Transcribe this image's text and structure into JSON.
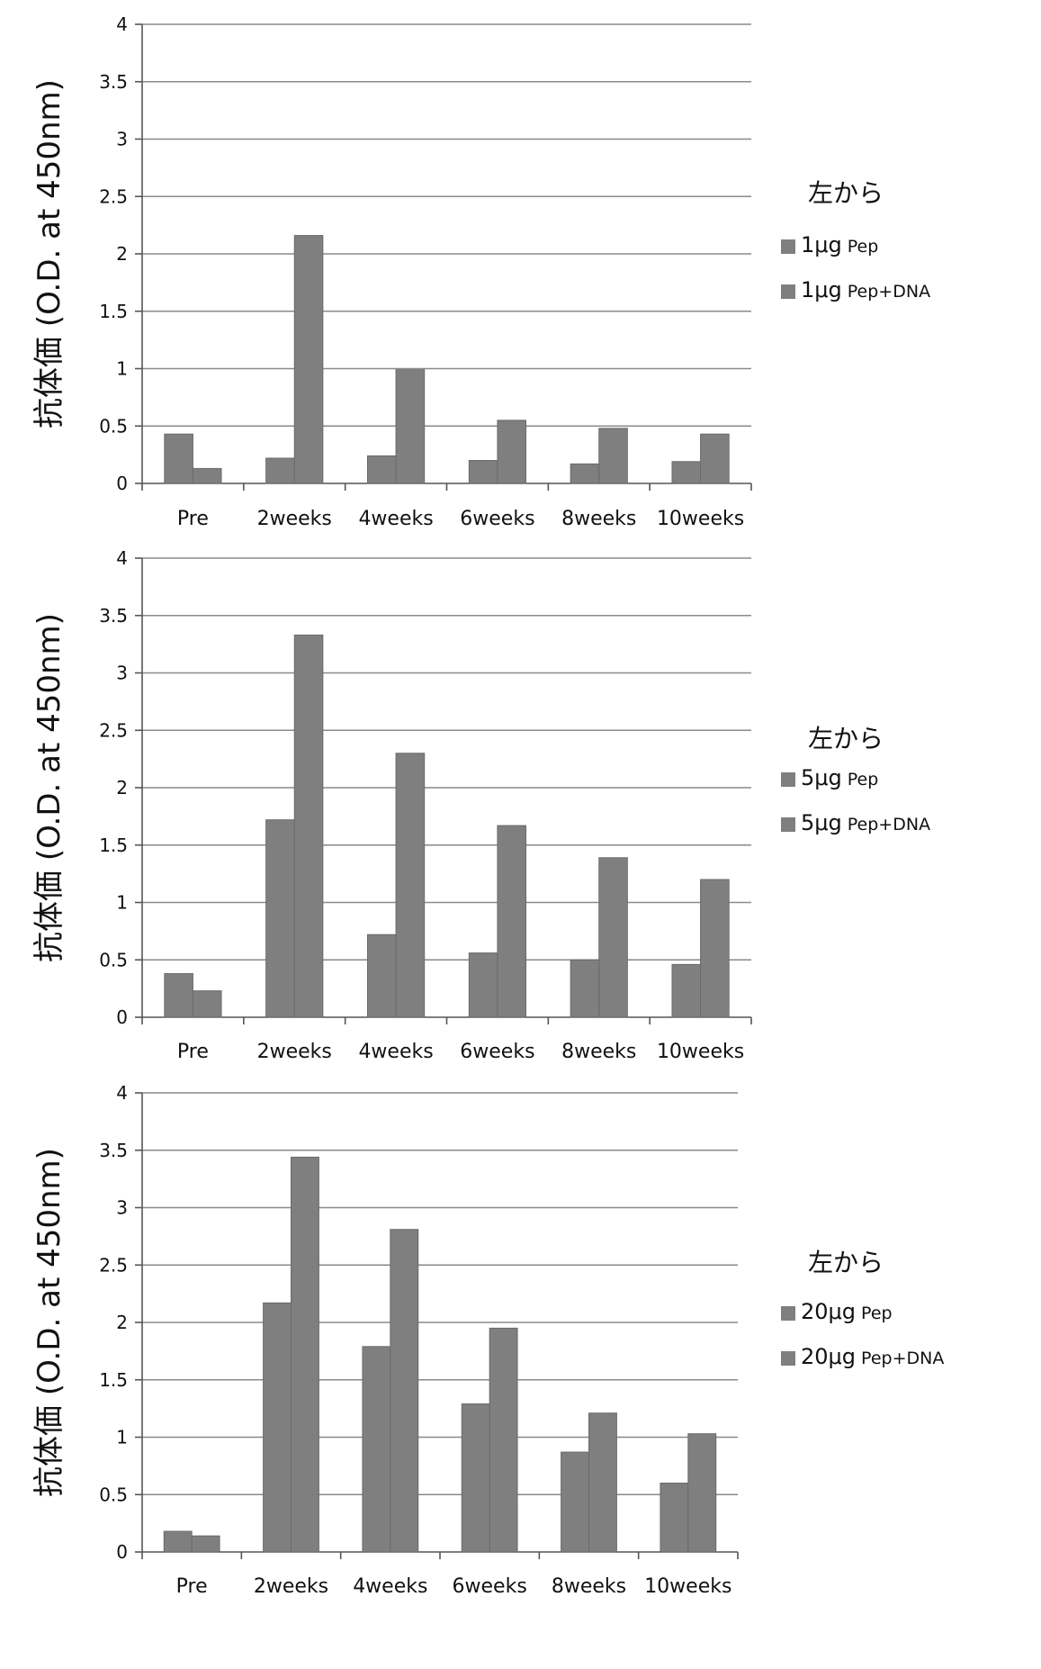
{
  "colors": {
    "bar": "#7f7f7f",
    "bar_stroke": "#6a6a6a",
    "grid": "#8a8a8a",
    "text": "#111111"
  },
  "chart_data": [
    {
      "type": "bar",
      "title": "",
      "xlabel": "",
      "ylabel": "抗体価 (O.D. at 450nm)",
      "ylim": [
        0,
        4
      ],
      "yticks": [
        "0",
        "0.5",
        "1",
        "1.5",
        "2",
        "2.5",
        "3",
        "3.5",
        "4"
      ],
      "categories": [
        "Pre",
        "2weeks",
        "4weeks",
        "6weeks",
        "8weeks",
        "10weeks"
      ],
      "legend_title": "左から",
      "legend_position": "right",
      "series": [
        {
          "name": "1μg Pep",
          "dose": "1μg",
          "sub": "Pep",
          "values": [
            0.43,
            0.22,
            0.24,
            0.2,
            0.17,
            0.19
          ]
        },
        {
          "name": "1μg Pep+DNA",
          "dose": "1μg",
          "sub": "Pep+DNA",
          "values": [
            0.13,
            2.16,
            0.99,
            0.55,
            0.48,
            0.43
          ]
        }
      ]
    },
    {
      "type": "bar",
      "title": "",
      "xlabel": "",
      "ylabel": "抗体価 (O.D. at 450nm)",
      "ylim": [
        0,
        4
      ],
      "yticks": [
        "0",
        "0.5",
        "1",
        "1.5",
        "2",
        "2.5",
        "3",
        "3.5",
        "4"
      ],
      "categories": [
        "Pre",
        "2weeks",
        "4weeks",
        "6weeks",
        "8weeks",
        "10weeks"
      ],
      "legend_title": "左から",
      "legend_position": "right",
      "series": [
        {
          "name": "5μg Pep",
          "dose": "5μg",
          "sub": "Pep",
          "values": [
            0.38,
            1.72,
            0.72,
            0.56,
            0.5,
            0.46
          ]
        },
        {
          "name": "5μg Pep+DNA",
          "dose": "5μg",
          "sub": "Pep+DNA",
          "values": [
            0.23,
            3.33,
            2.3,
            1.67,
            1.39,
            1.2
          ]
        }
      ]
    },
    {
      "type": "bar",
      "title": "",
      "xlabel": "",
      "ylabel": "抗体価 (O.D. at 450nm)",
      "ylim": [
        0,
        4
      ],
      "yticks": [
        "0",
        "0.5",
        "1",
        "1.5",
        "2",
        "2.5",
        "3",
        "3.5",
        "4"
      ],
      "categories": [
        "Pre",
        "2weeks",
        "4weeks",
        "6weeks",
        "8weeks",
        "10weeks"
      ],
      "legend_title": "左から",
      "legend_position": "right",
      "series": [
        {
          "name": "20μg Pep",
          "dose": "20μg",
          "sub": "Pep",
          "values": [
            0.18,
            2.17,
            1.79,
            1.29,
            0.87,
            0.6
          ]
        },
        {
          "name": "20μg Pep+DNA",
          "dose": "20μg",
          "sub": "Pep+DNA",
          "values": [
            0.14,
            3.44,
            2.81,
            1.95,
            1.21,
            1.03
          ]
        }
      ]
    }
  ]
}
